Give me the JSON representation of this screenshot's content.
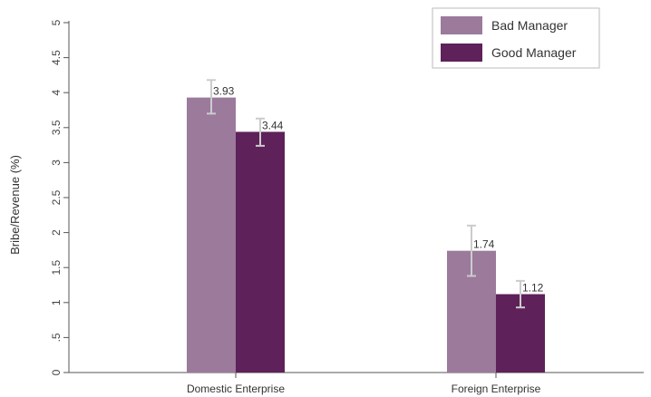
{
  "chart_data": {
    "type": "bar",
    "title": "",
    "xlabel": "",
    "ylabel": "Bribe/Revenue (%)",
    "ylim": [
      0,
      5
    ],
    "yticks": [
      0,
      0.5,
      1,
      1.5,
      2,
      2.5,
      3,
      3.5,
      4,
      4.5,
      5
    ],
    "ytick_labels": [
      "0",
      ".5",
      "1",
      "1.5",
      "2",
      "2.5",
      "3",
      "3.5",
      "4",
      "4.5",
      "5"
    ],
    "categories": [
      "Domestic Enterprise",
      "Foreign Enterprise"
    ],
    "series": [
      {
        "name": "Bad Manager",
        "color": "#9b7a9c",
        "values": [
          3.93,
          1.74
        ],
        "labels": [
          "3.93",
          "1.74"
        ],
        "error_low": [
          3.7,
          1.38
        ],
        "error_high": [
          4.18,
          2.1
        ]
      },
      {
        "name": "Good Manager",
        "color": "#5e2159",
        "values": [
          3.44,
          1.12
        ],
        "labels": [
          "3.44",
          "1.12"
        ],
        "error_low": [
          3.24,
          0.93
        ],
        "error_high": [
          3.63,
          1.31
        ]
      }
    ],
    "error_bar_color": "#cccccc",
    "legend": {
      "position": "top-right"
    },
    "grid": false
  }
}
